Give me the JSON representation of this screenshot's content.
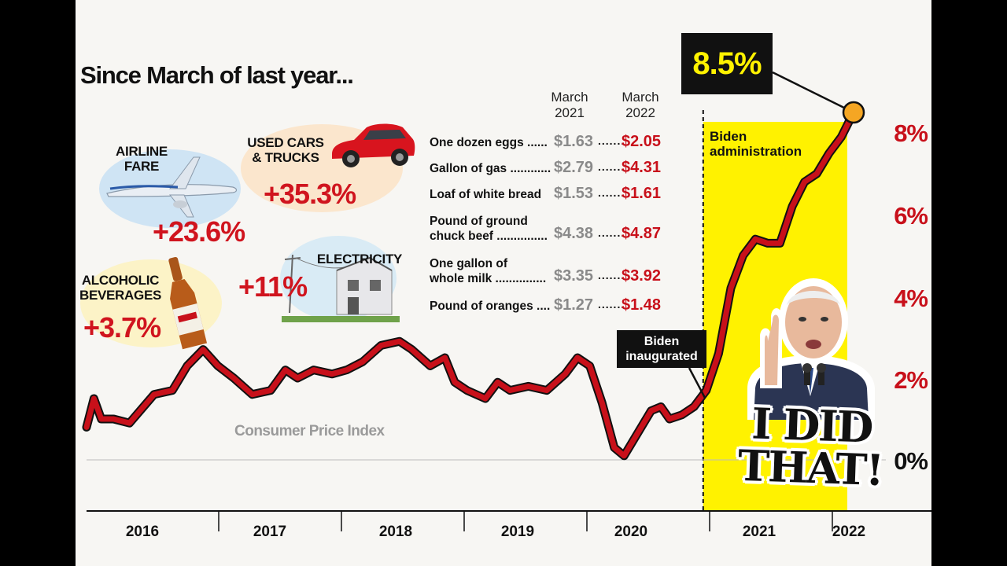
{
  "headline": "Since March of last year...",
  "categories": {
    "airline": {
      "label_line1": "AIRLINE",
      "label_line2": "FARE",
      "pct": "+23.6%"
    },
    "cars": {
      "label_line1": "USED CARS",
      "label_line2": "& TRUCKS",
      "pct": "+35.3%"
    },
    "electricity": {
      "label": "ELECTRICITY",
      "pct": "+11%"
    },
    "alcohol": {
      "label_line1": "ALCOHOLIC",
      "label_line2": "BEVERAGES",
      "pct": "+3.7%"
    }
  },
  "price_table": {
    "col1_line1": "March",
    "col1_line2": "2021",
    "col2_line1": "March",
    "col2_line2": "2022",
    "rows": [
      {
        "line1": "One dozen eggs",
        "line2": "",
        "dots1": "......",
        "v2021": "$1.63",
        "dots2": ".......",
        "v2022": "$2.05"
      },
      {
        "line1": "Gallon of gas",
        "line2": "",
        "dots1": "............",
        "v2021": "$2.79",
        "dots2": ".......",
        "v2022": "$4.31"
      },
      {
        "line1": "Loaf of white bread",
        "line2": "",
        "dots1": "",
        "v2021": "$1.53",
        "dots2": ".......",
        "v2022": "$1.61"
      },
      {
        "line1": "Pound of ground",
        "line2": "chuck beef",
        "dots1": "...............",
        "v2021": "$4.38",
        "dots2": ".......",
        "v2022": "$4.87"
      },
      {
        "line1": "One gallon of",
        "line2": "whole milk",
        "dots1": "...............",
        "v2021": "$3.35",
        "dots2": ".......",
        "v2022": "$3.92"
      },
      {
        "line1": "Pound of oranges",
        "line2": "",
        "dots1": "....",
        "v2021": "$1.27",
        "dots2": ".......",
        "v2022": "$1.48"
      }
    ]
  },
  "peak_label": "8.5%",
  "admin_label_line1": "Biden",
  "admin_label_line2": "administration",
  "inaugurated_line1": "Biden",
  "inaugurated_line2": "inaugurated",
  "sticker_text_line1": "I DID",
  "sticker_text_line2": "THAT!",
  "colors": {
    "line": "#c8101a",
    "highlight": "#fff200",
    "callout": "#111111",
    "peak_dot": "#f5a623"
  },
  "chart_data": {
    "type": "line",
    "title": "Consumer Price Index",
    "xlabel": "",
    "ylabel": "",
    "x_ticks": [
      "2016",
      "2017",
      "2018",
      "2019",
      "2020",
      "2021",
      "2022"
    ],
    "y_ticks": [
      "0%",
      "2%",
      "4%",
      "6%",
      "8%"
    ],
    "ylim": [
      -0.5,
      9
    ],
    "series": [
      {
        "name": "",
        "points": [
          [
            2016.0,
            0.8
          ],
          [
            2016.06,
            1.5
          ],
          [
            2016.12,
            1.0
          ],
          [
            2016.22,
            1.0
          ],
          [
            2016.35,
            0.9
          ],
          [
            2016.55,
            1.6
          ],
          [
            2016.7,
            1.7
          ],
          [
            2016.82,
            2.3
          ],
          [
            2016.95,
            2.7
          ],
          [
            2017.07,
            2.3
          ],
          [
            2017.2,
            2.0
          ],
          [
            2017.35,
            1.6
          ],
          [
            2017.5,
            1.7
          ],
          [
            2017.62,
            2.2
          ],
          [
            2017.72,
            2.0
          ],
          [
            2017.85,
            2.2
          ],
          [
            2018.0,
            2.1
          ],
          [
            2018.12,
            2.2
          ],
          [
            2018.25,
            2.4
          ],
          [
            2018.4,
            2.8
          ],
          [
            2018.55,
            2.9
          ],
          [
            2018.65,
            2.7
          ],
          [
            2018.8,
            2.3
          ],
          [
            2018.92,
            2.5
          ],
          [
            2019.0,
            1.9
          ],
          [
            2019.1,
            1.7
          ],
          [
            2019.25,
            1.5
          ],
          [
            2019.35,
            1.9
          ],
          [
            2019.45,
            1.7
          ],
          [
            2019.6,
            1.8
          ],
          [
            2019.75,
            1.7
          ],
          [
            2019.9,
            2.1
          ],
          [
            2020.0,
            2.5
          ],
          [
            2020.1,
            2.3
          ],
          [
            2020.2,
            1.4
          ],
          [
            2020.3,
            0.3
          ],
          [
            2020.38,
            0.1
          ],
          [
            2020.5,
            0.7
          ],
          [
            2020.6,
            1.2
          ],
          [
            2020.68,
            1.3
          ],
          [
            2020.75,
            1.0
          ],
          [
            2020.85,
            1.1
          ],
          [
            2020.95,
            1.3
          ],
          [
            2021.05,
            1.7
          ],
          [
            2021.15,
            2.6
          ],
          [
            2021.25,
            4.2
          ],
          [
            2021.35,
            5.0
          ],
          [
            2021.45,
            5.4
          ],
          [
            2021.55,
            5.3
          ],
          [
            2021.65,
            5.3
          ],
          [
            2021.75,
            6.2
          ],
          [
            2021.85,
            6.8
          ],
          [
            2021.95,
            7.0
          ],
          [
            2022.05,
            7.5
          ],
          [
            2022.15,
            7.9
          ],
          [
            2022.25,
            8.5
          ]
        ]
      }
    ],
    "highlight_range": [
      2021.05,
      2022.25
    ],
    "grid": false,
    "legend": "none"
  }
}
